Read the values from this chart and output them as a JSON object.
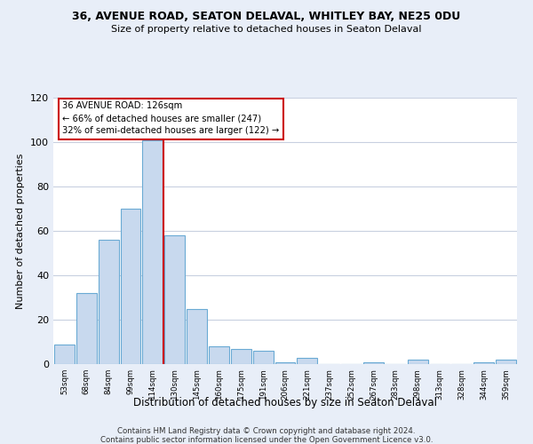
{
  "title1": "36, AVENUE ROAD, SEATON DELAVAL, WHITLEY BAY, NE25 0DU",
  "title2": "Size of property relative to detached houses in Seaton Delaval",
  "xlabel": "Distribution of detached houses by size in Seaton Delaval",
  "ylabel": "Number of detached properties",
  "bin_labels": [
    "53sqm",
    "68sqm",
    "84sqm",
    "99sqm",
    "114sqm",
    "130sqm",
    "145sqm",
    "160sqm",
    "175sqm",
    "191sqm",
    "206sqm",
    "221sqm",
    "237sqm",
    "252sqm",
    "267sqm",
    "283sqm",
    "298sqm",
    "313sqm",
    "328sqm",
    "344sqm",
    "359sqm"
  ],
  "bar_heights": [
    9,
    32,
    56,
    70,
    101,
    58,
    25,
    8,
    7,
    6,
    1,
    3,
    0,
    0,
    1,
    0,
    2,
    0,
    0,
    1,
    2
  ],
  "bar_color": "#c8d9ee",
  "bar_edge_color": "#6aaad4",
  "annotation_line_color": "#cc0000",
  "ylim": [
    0,
    120
  ],
  "yticks": [
    0,
    20,
    40,
    60,
    80,
    100,
    120
  ],
  "annotation_box_text": "36 AVENUE ROAD: 126sqm\n← 66% of detached houses are smaller (247)\n32% of semi-detached houses are larger (122) →",
  "footer1": "Contains HM Land Registry data © Crown copyright and database right 2024.",
  "footer2": "Contains public sector information licensed under the Open Government Licence v3.0.",
  "background_color": "#e8eef8",
  "plot_bg_color": "#ffffff",
  "grid_color": "#c8d0e0"
}
